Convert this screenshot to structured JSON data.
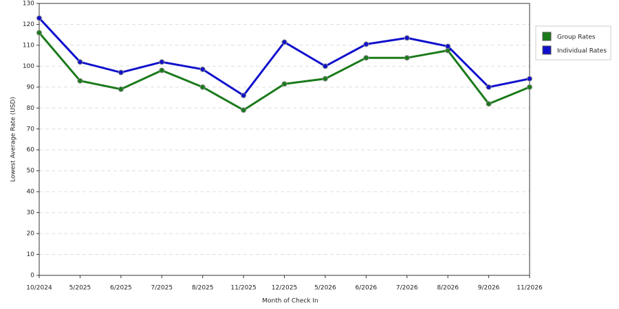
{
  "chart_data": {
    "type": "line",
    "x_label": "Month of Check In",
    "y_label": "Lowest Average Rate (USD)",
    "categories": [
      "10/2024",
      "5/2025",
      "6/2025",
      "7/2025",
      "8/2025",
      "11/2025",
      "12/2025",
      "5/2026",
      "6/2026",
      "7/2026",
      "8/2026",
      "9/2026",
      "11/2026"
    ],
    "series": [
      {
        "name": "Group Rates",
        "color": "#1a7a1a",
        "values": [
          116,
          93,
          89,
          98,
          90,
          79,
          91.5,
          94,
          104,
          104,
          107.5,
          82,
          90
        ]
      },
      {
        "name": "Individual Rates",
        "color": "#1010cc",
        "values": [
          123,
          102,
          97,
          102,
          98.5,
          86,
          111.5,
          100,
          110.5,
          113.5,
          109.5,
          90,
          94
        ]
      }
    ],
    "ylim": [
      0,
      130
    ],
    "yticks": [
      0,
      10,
      20,
      30,
      40,
      50,
      60,
      70,
      80,
      90,
      100,
      110,
      120,
      130
    ],
    "grid": true,
    "legend": "right"
  }
}
